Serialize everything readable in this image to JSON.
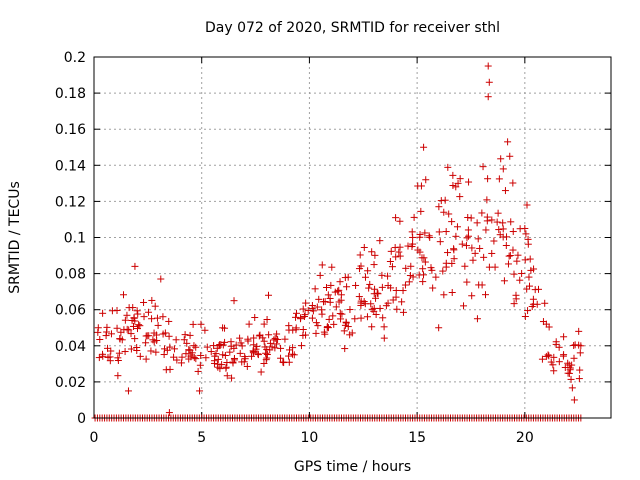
{
  "chart_data": {
    "type": "scatter",
    "title": "Day 072 of 2020, SRMTID for receiver sthl",
    "xlabel": "GPS time / hours",
    "ylabel": "SRMTID / TECUs",
    "xlim": [
      0,
      24
    ],
    "ylim": [
      0,
      0.2
    ],
    "grid": true,
    "marker": "+",
    "color": "#cc0000",
    "x_ticks": [
      "0",
      "5",
      "10",
      "15",
      "20"
    ],
    "y_ticks": [
      "0",
      "0.02",
      "0.04",
      "0.06",
      "0.08",
      "0.1",
      "0.12",
      "0.14",
      "0.16",
      "0.18",
      "0.2"
    ],
    "trend": [
      [
        0.0,
        0.04
      ],
      [
        1.0,
        0.045
      ],
      [
        2.0,
        0.048
      ],
      [
        3.0,
        0.042
      ],
      [
        4.0,
        0.038
      ],
      [
        5.0,
        0.035
      ],
      [
        6.0,
        0.036
      ],
      [
        7.0,
        0.037
      ],
      [
        8.0,
        0.04
      ],
      [
        9.0,
        0.038
      ],
      [
        10.0,
        0.058
      ],
      [
        11.0,
        0.062
      ],
      [
        12.0,
        0.06
      ],
      [
        13.0,
        0.068
      ],
      [
        14.0,
        0.07
      ],
      [
        15.0,
        0.09
      ],
      [
        16.0,
        0.1
      ],
      [
        17.0,
        0.1
      ],
      [
        18.0,
        0.098
      ],
      [
        19.0,
        0.105
      ],
      [
        20.0,
        0.08
      ],
      [
        21.0,
        0.04
      ],
      [
        22.0,
        0.03
      ],
      [
        22.6,
        0.035
      ]
    ],
    "points": [
      [
        18.3,
        0.195
      ],
      [
        18.35,
        0.186
      ],
      [
        18.3,
        0.178
      ],
      [
        15.3,
        0.15
      ],
      [
        19.2,
        0.153
      ],
      [
        19.3,
        0.145
      ],
      [
        19.0,
        0.138
      ],
      [
        16.9,
        0.13
      ],
      [
        15.4,
        0.132
      ],
      [
        19.1,
        0.126
      ],
      [
        20.1,
        0.118
      ],
      [
        14.0,
        0.111
      ],
      [
        14.2,
        0.109
      ],
      [
        20.0,
        0.105
      ],
      [
        20.05,
        0.102
      ],
      [
        3.1,
        0.077
      ],
      [
        1.9,
        0.084
      ],
      [
        8.1,
        0.068
      ],
      [
        10.5,
        0.079
      ],
      [
        13.0,
        0.085
      ],
      [
        3.5,
        0.003
      ],
      [
        1.6,
        0.015
      ],
      [
        4.9,
        0.015
      ],
      [
        22.3,
        0.01
      ],
      [
        17.8,
        0.055
      ],
      [
        16.0,
        0.05
      ],
      [
        19.6,
        0.066
      ],
      [
        20.4,
        0.063
      ],
      [
        21.0,
        0.052
      ],
      [
        21.8,
        0.045
      ],
      [
        22.5,
        0.048
      ],
      [
        22.6,
        0.04
      ],
      [
        0.4,
        0.058
      ],
      [
        0.2,
        0.05
      ],
      [
        2.3,
        0.064
      ],
      [
        6.5,
        0.065
      ],
      [
        7.2,
        0.052
      ],
      [
        9.4,
        0.058
      ],
      [
        11.8,
        0.078
      ],
      [
        12.8,
        0.074
      ]
    ],
    "baseline": {
      "y": 0,
      "x_start": 0.05,
      "x_end": 22.7,
      "step": 0.11
    },
    "noise_seed": 72,
    "points_per_hour": 22
  }
}
